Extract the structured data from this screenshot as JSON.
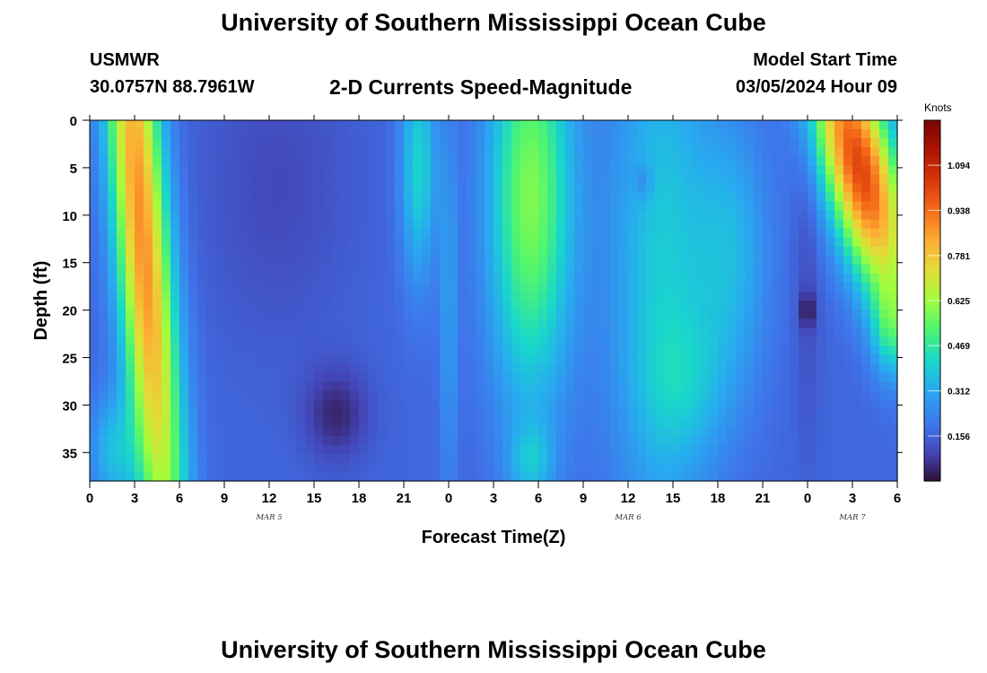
{
  "header": {
    "title": "University of Southern Mississippi Ocean Cube",
    "station": "USMWR",
    "coordinates": "30.0757N  88.7961W",
    "subtitle": "2-D Currents Speed-Magnitude",
    "model_start_label": "Model Start Time",
    "model_start_value": "03/05/2024 Hour 09"
  },
  "footer": {
    "title": "University of Southern Mississippi Ocean Cube"
  },
  "chart_data": {
    "type": "heatmap",
    "title": "2-D Currents Speed-Magnitude",
    "xlabel": "Forecast Time(Z)",
    "ylabel": "Depth (ft)",
    "colorbar_label": "Knots",
    "x_unit": "forecast hour from 03/05/2024 00Z",
    "xlim": [
      0,
      54
    ],
    "ylim": [
      0,
      38
    ],
    "y_reversed": true,
    "x_ticks": [
      0,
      3,
      6,
      9,
      12,
      15,
      18,
      21,
      24,
      27,
      30,
      33,
      36,
      39,
      42,
      45,
      48,
      51,
      54
    ],
    "x_tick_labels": [
      "0",
      "3",
      "6",
      "9",
      "12",
      "15",
      "18",
      "21",
      "0",
      "3",
      "6",
      "9",
      "12",
      "15",
      "18",
      "21",
      "0",
      "3",
      "6"
    ],
    "date_labels": [
      {
        "x": 12,
        "text": "MAR 5"
      },
      {
        "x": 36,
        "text": "MAR 6"
      },
      {
        "x": 51,
        "text": "MAR 7"
      }
    ],
    "y_ticks": [
      0,
      5,
      10,
      15,
      20,
      25,
      30,
      35
    ],
    "y_tick_labels": [
      "0",
      "5",
      "10",
      "15",
      "20",
      "25",
      "30",
      "35"
    ],
    "colorbar": {
      "min": 0,
      "max": 1.25,
      "ticks": [
        0.156,
        0.312,
        0.469,
        0.625,
        0.781,
        0.938,
        1.094
      ],
      "tick_labels": [
        "0.156",
        "0.312",
        "0.469",
        "0.625",
        "0.781",
        "0.938",
        "1.094"
      ]
    },
    "features": [
      {
        "x": 3.5,
        "y": 12,
        "sx": 1.8,
        "sy": 40,
        "v": 0.72,
        "tilt": 0.05
      },
      {
        "x": 1.5,
        "y": 35,
        "sx": 1.5,
        "sy": 6,
        "v": 0.18,
        "tilt": 0
      },
      {
        "x": 22,
        "y": 5,
        "sx": 1.2,
        "sy": 12,
        "v": 0.25,
        "tilt": 0
      },
      {
        "x": 24,
        "y": 20,
        "sx": 0.6,
        "sy": 20,
        "v": 0.12,
        "tilt": 0
      },
      {
        "x": 29.5,
        "y": 8,
        "sx": 2.8,
        "sy": 22,
        "v": 0.42,
        "tilt": 0
      },
      {
        "x": 29.5,
        "y": 36,
        "sx": 1.5,
        "sy": 4,
        "v": 0.15,
        "tilt": 0
      },
      {
        "x": 38.2,
        "y": 15,
        "sx": 3.5,
        "sy": 30,
        "v": 0.22,
        "tilt": 0
      },
      {
        "x": 40,
        "y": 28,
        "sx": 3,
        "sy": 8,
        "v": 0.1,
        "tilt": 0
      },
      {
        "x": 43,
        "y": 14,
        "sx": 2.5,
        "sy": 14,
        "v": 0.16,
        "tilt": 0
      },
      {
        "x": 51.5,
        "y": 5,
        "sx": 2.5,
        "sy": 14,
        "v": 0.85,
        "tilt": 0.15
      },
      {
        "x": 53.5,
        "y": 22,
        "sx": 1.2,
        "sy": 5,
        "v": 0.2,
        "tilt": 0
      },
      {
        "x": 16.5,
        "y": 31,
        "sx": 2.2,
        "sy": 5,
        "v": -0.12,
        "tilt": 0
      },
      {
        "x": 12.5,
        "y": 7,
        "sx": 5,
        "sy": 16,
        "v": -0.06,
        "tilt": 0
      },
      {
        "x": 37,
        "y": 6.5,
        "sx": 0.6,
        "sy": 2,
        "v": -0.08,
        "tilt": 0
      },
      {
        "x": 48,
        "y": 20,
        "sx": 0.5,
        "sy": 2,
        "v": -0.12,
        "tilt": 0
      },
      {
        "x": 48,
        "y": 15,
        "sx": 0.9,
        "sy": 20,
        "v": -0.05,
        "tilt": 0
      }
    ],
    "baseline": 0.16
  }
}
